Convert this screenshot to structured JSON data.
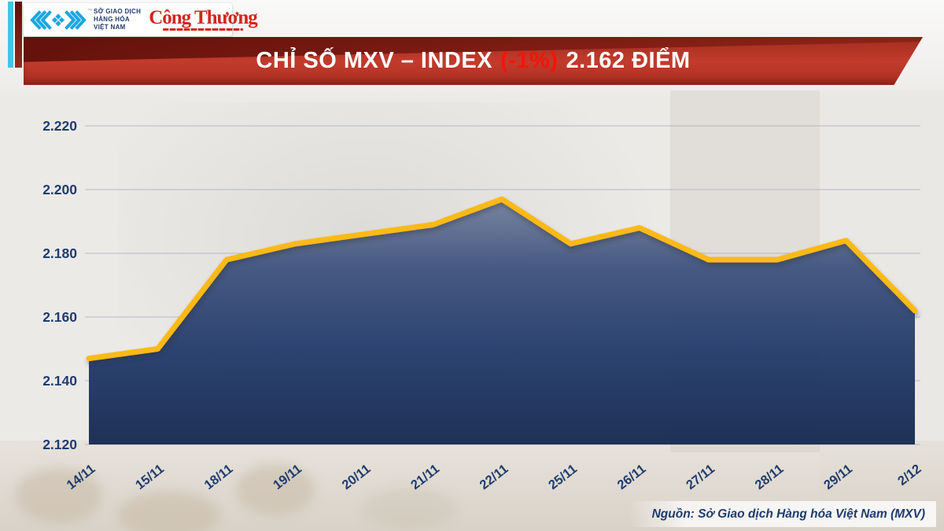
{
  "logo": {
    "org_lines": [
      "SỞ GIAO DỊCH",
      "HÀNG HÓA",
      "VIỆT NAM"
    ],
    "trademark": "™",
    "newspaper": "Công Thương"
  },
  "banner": {
    "title_prefix": "CHỈ SỐ MXV – INDEX",
    "title_change": "(-1%)",
    "title_suffix": "2.162 ĐIỂM"
  },
  "chart_data": {
    "type": "area",
    "title": "CHỈ SỐ MXV – INDEX (-1%) 2.162 ĐIỂM",
    "x": [
      "14/11",
      "15/11",
      "18/11",
      "19/11",
      "20/11",
      "21/11",
      "22/11",
      "25/11",
      "26/11",
      "27/11",
      "28/11",
      "29/11",
      "2/12"
    ],
    "series": [
      {
        "name": "MXV-Index",
        "values": [
          2.147,
          2.15,
          2.178,
          2.183,
          2.186,
          2.189,
          2.197,
          2.183,
          2.188,
          2.178,
          2.178,
          2.184,
          2.162
        ]
      }
    ],
    "ylim": [
      2.12,
      2.22
    ],
    "yticks": [
      2.12,
      2.14,
      2.16,
      2.18,
      2.2,
      2.22
    ],
    "ytick_labels": [
      "2.120",
      "2.140",
      "2.160",
      "2.180",
      "2.200",
      "2.220"
    ],
    "xlabel": "",
    "ylabel": "",
    "grid": true,
    "legend": false,
    "line_color": "#fdb913",
    "area_gradient": [
      [
        "0%",
        "#76829f"
      ],
      [
        "28%",
        "#41557f"
      ],
      [
        "62%",
        "#263d6d"
      ],
      [
        "100%",
        "#182c52"
      ]
    ],
    "gridline_color": "#a9b1c2",
    "axis_label_color": "#1e3c6e"
  },
  "footer": {
    "source": "Nguồn: Sở Giao dịch Hàng hóa Việt Nam (MXV)"
  },
  "colors": {
    "banner_red": "#c23b2c",
    "banner_red_dark": "#5c0e08",
    "change_red": "#f31505",
    "logo_cyan": "#1ba6e0",
    "navy": "#1e3c6e",
    "newspaper_red": "#d6251b",
    "stripe_cyan": "#45c3ea"
  }
}
